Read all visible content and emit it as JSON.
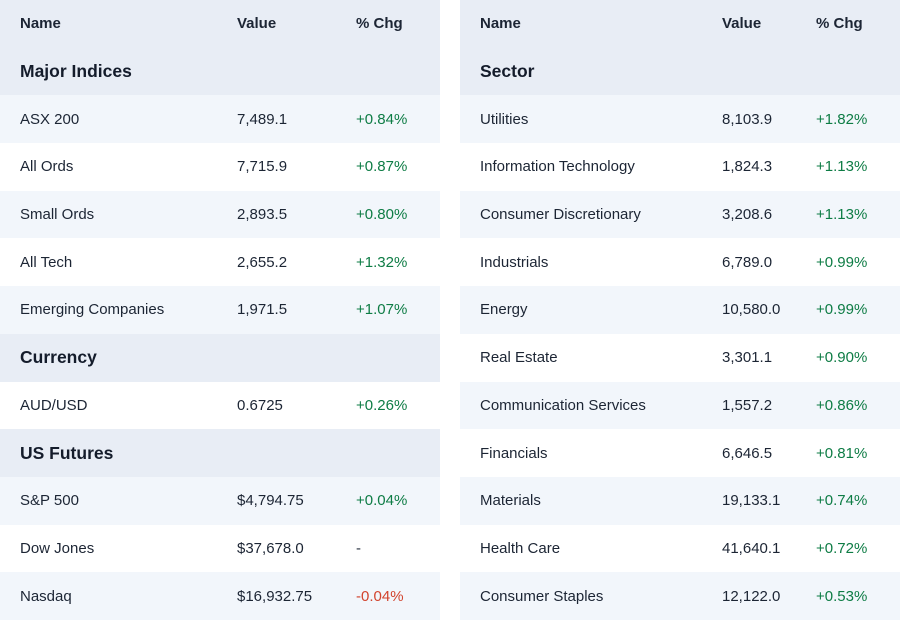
{
  "colors": {
    "positive": "#0e7c45",
    "negative": "#d2442e",
    "neutral": "#2a3342",
    "header_bg": "#e8edf5",
    "row_alt_bg": "#f2f6fb",
    "text": "#1c2534"
  },
  "left_table": {
    "headers": {
      "name": "Name",
      "value": "Value",
      "chg": "% Chg"
    },
    "sections": [
      {
        "title": "Major Indices",
        "rows": [
          {
            "name": "ASX 200",
            "value": "7,489.1",
            "chg": "+0.84%",
            "dir": "up"
          },
          {
            "name": "All Ords",
            "value": "7,715.9",
            "chg": "+0.87%",
            "dir": "up"
          },
          {
            "name": "Small Ords",
            "value": "2,893.5",
            "chg": "+0.80%",
            "dir": "up"
          },
          {
            "name": "All Tech",
            "value": "2,655.2",
            "chg": "+1.32%",
            "dir": "up"
          },
          {
            "name": "Emerging Companies",
            "value": "1,971.5",
            "chg": "+1.07%",
            "dir": "up"
          }
        ]
      },
      {
        "title": "Currency",
        "rows": [
          {
            "name": "AUD/USD",
            "value": "0.6725",
            "chg": "+0.26%",
            "dir": "up"
          }
        ]
      },
      {
        "title": "US Futures",
        "rows": [
          {
            "name": "S&P 500",
            "value": "$4,794.75",
            "chg": "+0.04%",
            "dir": "up"
          },
          {
            "name": "Dow Jones",
            "value": "$37,678.0",
            "chg": "-",
            "dir": "flat"
          },
          {
            "name": "Nasdaq",
            "value": "$16,932.75",
            "chg": "-0.04%",
            "dir": "down"
          }
        ]
      }
    ]
  },
  "right_table": {
    "headers": {
      "name": "Name",
      "value": "Value",
      "chg": "% Chg"
    },
    "sections": [
      {
        "title": "Sector",
        "rows": [
          {
            "name": "Utilities",
            "value": "8,103.9",
            "chg": "+1.82%",
            "dir": "up"
          },
          {
            "name": "Information Technology",
            "value": "1,824.3",
            "chg": "+1.13%",
            "dir": "up"
          },
          {
            "name": "Consumer Discretionary",
            "value": "3,208.6",
            "chg": "+1.13%",
            "dir": "up"
          },
          {
            "name": "Industrials",
            "value": "6,789.0",
            "chg": "+0.99%",
            "dir": "up"
          },
          {
            "name": "Energy",
            "value": "10,580.0",
            "chg": "+0.99%",
            "dir": "up"
          },
          {
            "name": "Real Estate",
            "value": "3,301.1",
            "chg": "+0.90%",
            "dir": "up"
          },
          {
            "name": "Communication Services",
            "value": "1,557.2",
            "chg": "+0.86%",
            "dir": "up"
          },
          {
            "name": "Financials",
            "value": "6,646.5",
            "chg": "+0.81%",
            "dir": "up"
          },
          {
            "name": "Materials",
            "value": "19,133.1",
            "chg": "+0.74%",
            "dir": "up"
          },
          {
            "name": "Health Care",
            "value": "41,640.1",
            "chg": "+0.72%",
            "dir": "up"
          },
          {
            "name": "Consumer Staples",
            "value": "12,122.0",
            "chg": "+0.53%",
            "dir": "up"
          }
        ]
      }
    ]
  }
}
